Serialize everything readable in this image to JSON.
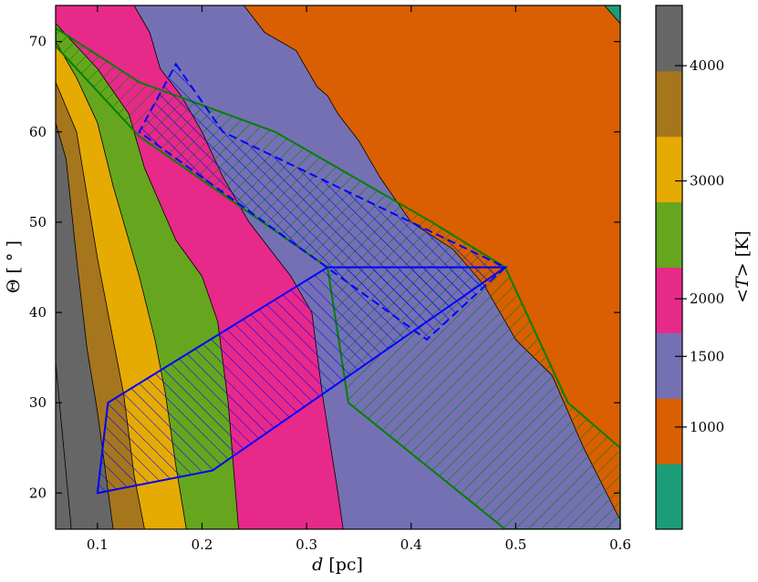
{
  "chart_data": {
    "type": "contour",
    "xlabel": "d [pc]",
    "xlabel_var": "d",
    "xlabel_unit": " [pc]",
    "ylabel": "Θ [ ° ]",
    "ylabel_var": "Θ",
    "ylabel_unit": " [ ° ]",
    "xlim": [
      0.06,
      0.6
    ],
    "ylim": [
      16,
      74
    ],
    "x_ticks": [
      0.1,
      0.2,
      0.3,
      0.4,
      0.5,
      0.6
    ],
    "x_tick_labels": [
      "0.1",
      "0.2",
      "0.3",
      "0.4",
      "0.5",
      "0.6"
    ],
    "y_ticks": [
      20,
      30,
      40,
      50,
      60,
      70
    ],
    "y_tick_labels": [
      "20",
      "30",
      "40",
      "50",
      "60",
      "70"
    ],
    "colorbar": {
      "label": "<T> [K]",
      "label_parts": [
        "<",
        "T",
        "> [K]"
      ],
      "levels": [
        {
          "color": "#1b9e77"
        },
        {
          "color": "#d95f02"
        },
        {
          "color": "#7570b3",
          "label": "1000"
        },
        {
          "color": "#e7298a",
          "label": "1500"
        },
        {
          "color": "#66a61e",
          "label": "2000"
        },
        {
          "color": "#e6ab02"
        },
        {
          "color": "#a6761d",
          "label": "3000"
        },
        {
          "color": "#666666",
          "label": "4000"
        }
      ],
      "ticks": [
        {
          "label": "1000",
          "pos": 0.195
        },
        {
          "label": "1500",
          "pos": 0.33
        },
        {
          "label": "2000",
          "pos": 0.44
        },
        {
          "label": "3000",
          "pos": 0.665
        },
        {
          "label": "4000",
          "pos": 0.885
        }
      ]
    },
    "contour_boundaries": [
      {
        "upper_color": "#666666",
        "points": [
          [
            0.06,
            34.5
          ],
          [
            0.075,
            16
          ]
        ]
      },
      {
        "upper_color": "#a6761d",
        "points": [
          [
            0.06,
            61
          ],
          [
            0.07,
            57
          ],
          [
            0.08,
            46
          ],
          [
            0.09,
            36
          ],
          [
            0.1,
            29
          ],
          [
            0.115,
            16
          ]
        ]
      },
      {
        "upper_color": "#e6ab02",
        "points": [
          [
            0.06,
            65.5
          ],
          [
            0.08,
            60
          ],
          [
            0.09,
            53
          ],
          [
            0.1,
            46
          ],
          [
            0.115,
            37
          ],
          [
            0.125,
            31
          ],
          [
            0.135,
            22
          ],
          [
            0.145,
            16
          ]
        ]
      },
      {
        "upper_color": "#66a61e",
        "points": [
          [
            0.06,
            70
          ],
          [
            0.08,
            66
          ],
          [
            0.1,
            61
          ],
          [
            0.115,
            54
          ],
          [
            0.13,
            48
          ],
          [
            0.14,
            44
          ],
          [
            0.155,
            37
          ],
          [
            0.165,
            31
          ],
          [
            0.175,
            23
          ],
          [
            0.185,
            16
          ]
        ]
      },
      {
        "upper_color": "#e7298a",
        "points": [
          [
            0.06,
            72
          ],
          [
            0.1,
            67
          ],
          [
            0.13,
            62
          ],
          [
            0.145,
            56
          ],
          [
            0.16,
            52
          ],
          [
            0.175,
            48
          ],
          [
            0.2,
            44
          ],
          [
            0.215,
            39
          ],
          [
            0.225,
            30
          ],
          [
            0.235,
            16
          ]
        ]
      },
      {
        "upper_color": "#7570b3",
        "points": [
          [
            0.135,
            74
          ],
          [
            0.15,
            71
          ],
          [
            0.16,
            67
          ],
          [
            0.18,
            64
          ],
          [
            0.2,
            60
          ],
          [
            0.22,
            55
          ],
          [
            0.245,
            50
          ],
          [
            0.265,
            47
          ],
          [
            0.285,
            44
          ],
          [
            0.305,
            40
          ],
          [
            0.315,
            31
          ],
          [
            0.33,
            20
          ],
          [
            0.335,
            16
          ]
        ]
      },
      {
        "upper_color": "#d95f02",
        "points": [
          [
            0.24,
            74
          ],
          [
            0.26,
            71
          ],
          [
            0.29,
            69
          ],
          [
            0.3,
            67
          ],
          [
            0.31,
            65
          ],
          [
            0.32,
            64
          ],
          [
            0.33,
            62
          ],
          [
            0.35,
            59
          ],
          [
            0.37,
            55
          ],
          [
            0.4,
            50
          ],
          [
            0.44,
            47
          ],
          [
            0.47,
            43
          ],
          [
            0.5,
            37
          ],
          [
            0.535,
            33
          ],
          [
            0.565,
            25
          ],
          [
            0.6,
            17
          ],
          [
            0.6,
            16
          ]
        ]
      },
      {
        "upper_color": "#1b9e77",
        "points": [
          [
            0.585,
            74
          ],
          [
            0.6,
            72
          ],
          [
            0.6,
            74
          ]
        ]
      }
    ],
    "regions": [
      {
        "color": "#008000",
        "hatch": "/",
        "style": "solid",
        "points": [
          [
            0.06,
            69.5
          ],
          [
            0.06,
            71.5
          ],
          [
            0.14,
            65.5
          ],
          [
            0.27,
            60
          ],
          [
            0.42,
            50
          ],
          [
            0.49,
            45
          ],
          [
            0.55,
            30
          ],
          [
            0.6,
            25
          ],
          [
            0.6,
            16
          ],
          [
            0.49,
            16
          ],
          [
            0.34,
            30
          ],
          [
            0.32,
            45
          ],
          [
            0.14,
            59.5
          ]
        ]
      },
      {
        "color": "#0000ff",
        "hatch": "\\",
        "style": "solid",
        "points": [
          [
            0.1,
            20
          ],
          [
            0.21,
            22.5
          ],
          [
            0.49,
            45
          ],
          [
            0.32,
            45
          ],
          [
            0.11,
            30
          ]
        ]
      },
      {
        "color": "#0000ff",
        "hatch": "\\",
        "style": "dashed",
        "points": [
          [
            0.175,
            67.5
          ],
          [
            0.22,
            60
          ],
          [
            0.49,
            45
          ],
          [
            0.415,
            37
          ],
          [
            0.14,
            60
          ]
        ]
      }
    ]
  }
}
